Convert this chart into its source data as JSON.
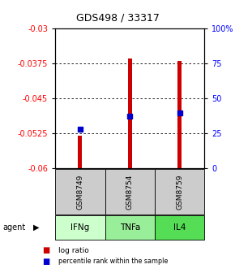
{
  "title": "GDS498 / 33317",
  "samples": [
    "GSM8749",
    "GSM8754",
    "GSM8759"
  ],
  "agents": [
    "IFNg",
    "TNFa",
    "IL4"
  ],
  "bar_bottoms": [
    -0.06,
    -0.06,
    -0.06
  ],
  "bar_tops": [
    -0.053,
    -0.0365,
    -0.037
  ],
  "percentile_values": [
    -0.0517,
    -0.0488,
    -0.0482
  ],
  "ylim_left": [
    -0.06,
    -0.03
  ],
  "ylim_right": [
    0,
    100
  ],
  "yticks_left": [
    -0.06,
    -0.0525,
    -0.045,
    -0.0375,
    -0.03
  ],
  "ytick_labels_left": [
    "-0.06",
    "-0.0525",
    "-0.045",
    "-0.0375",
    "-0.03"
  ],
  "yticks_right": [
    0,
    25,
    50,
    75,
    100
  ],
  "ytick_labels_right": [
    "0",
    "25",
    "50",
    "75",
    "100%"
  ],
  "bar_color": "#cc0000",
  "percentile_color": "#0000cc",
  "sample_bg_color": "#cccccc",
  "agent_bg_colors": [
    "#ccffcc",
    "#99ee99",
    "#55dd55"
  ],
  "legend_log_ratio_color": "#cc0000",
  "legend_percentile_color": "#0000cc",
  "bar_width": 0.08
}
